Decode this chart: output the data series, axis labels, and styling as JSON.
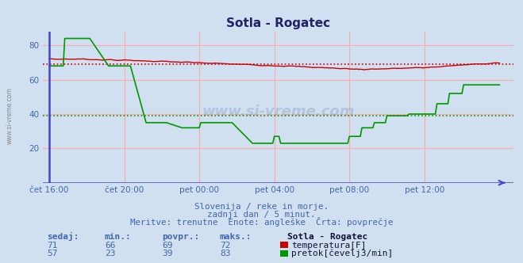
{
  "title": "Sotla - Rogatec",
  "bg_color": "#d0e0f0",
  "plot_bg_color": "#d0e0f0",
  "x_ticks_labels": [
    "čet 16:00",
    "čet 20:00",
    "pet 00:00",
    "pet 04:00",
    "pet 08:00",
    "pet 12:00"
  ],
  "x_ticks_pos": [
    0,
    48,
    96,
    144,
    192,
    240
  ],
  "total_points": 289,
  "ylim": [
    0,
    88
  ],
  "yticks": [
    20,
    40,
    60,
    80
  ],
  "temp_color": "#cc0000",
  "flow_color": "#009900",
  "axis_color": "#4444cc",
  "grid_color": "#ffaaaa",
  "temp_avg": 69,
  "flow_avg": 39,
  "subtitle1": "Slovenija / reke in morje.",
  "subtitle2": "zadnji dan / 5 minut.",
  "subtitle3": "Meritve: trenutne  Enote: angleške  Črta: povprečje",
  "table_headers": [
    "sedaj:",
    "min.:",
    "povpr.:",
    "maks.:"
  ],
  "temp_row": [
    "71",
    "66",
    "69",
    "72"
  ],
  "flow_row": [
    "57",
    "23",
    "39",
    "83"
  ],
  "station_name": "Sotla - Rogatec",
  "temp_label": "temperatura[F]",
  "flow_label": "pretok[čevelj3/min]",
  "watermark": "www.si-vreme.com",
  "font_color": "#4466aa",
  "title_color": "#222266"
}
